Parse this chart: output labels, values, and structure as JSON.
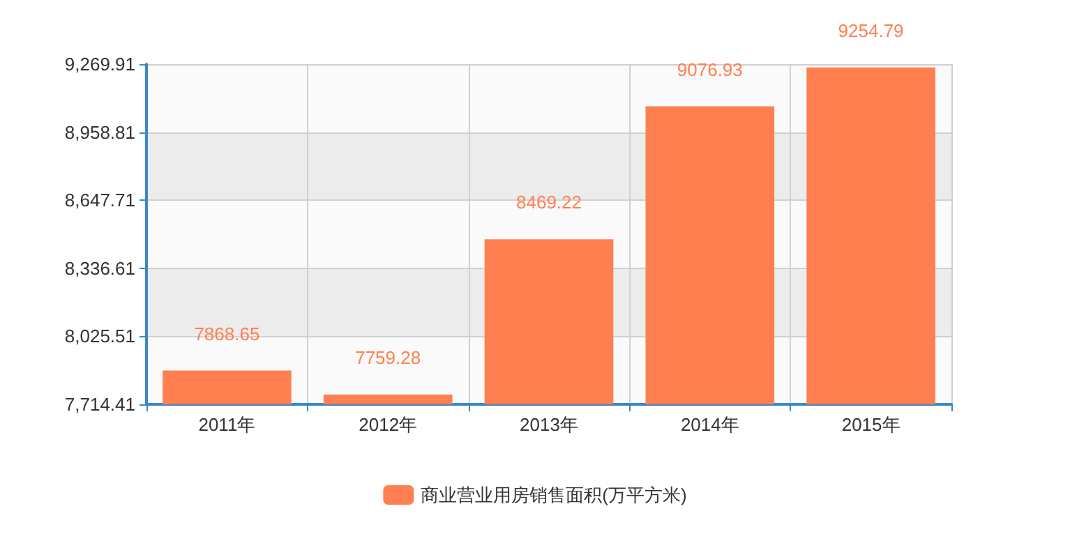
{
  "chart_data": {
    "type": "bar",
    "categories": [
      "2011年",
      "2012年",
      "2013年",
      "2014年",
      "2015年"
    ],
    "series": [
      {
        "name": "商业营业用房销售面积(万平方米)",
        "color": "#ff7f50",
        "values": [
          7868.65,
          7759.28,
          8469.22,
          9076.93,
          9254.79
        ]
      }
    ],
    "ylim": [
      7714.41,
      9269.91
    ],
    "yticks": [
      {
        "value": 7714.41,
        "label": "7,714.41"
      },
      {
        "value": 8025.51,
        "label": "8,025.51"
      },
      {
        "value": 8336.61,
        "label": "8,336.61"
      },
      {
        "value": 8647.71,
        "label": "8,647.71"
      },
      {
        "value": 8958.81,
        "label": "8,958.81"
      },
      {
        "value": 9269.91,
        "label": "9,269.91"
      }
    ],
    "grid": true,
    "legend": "bottom",
    "data_labels": true
  }
}
